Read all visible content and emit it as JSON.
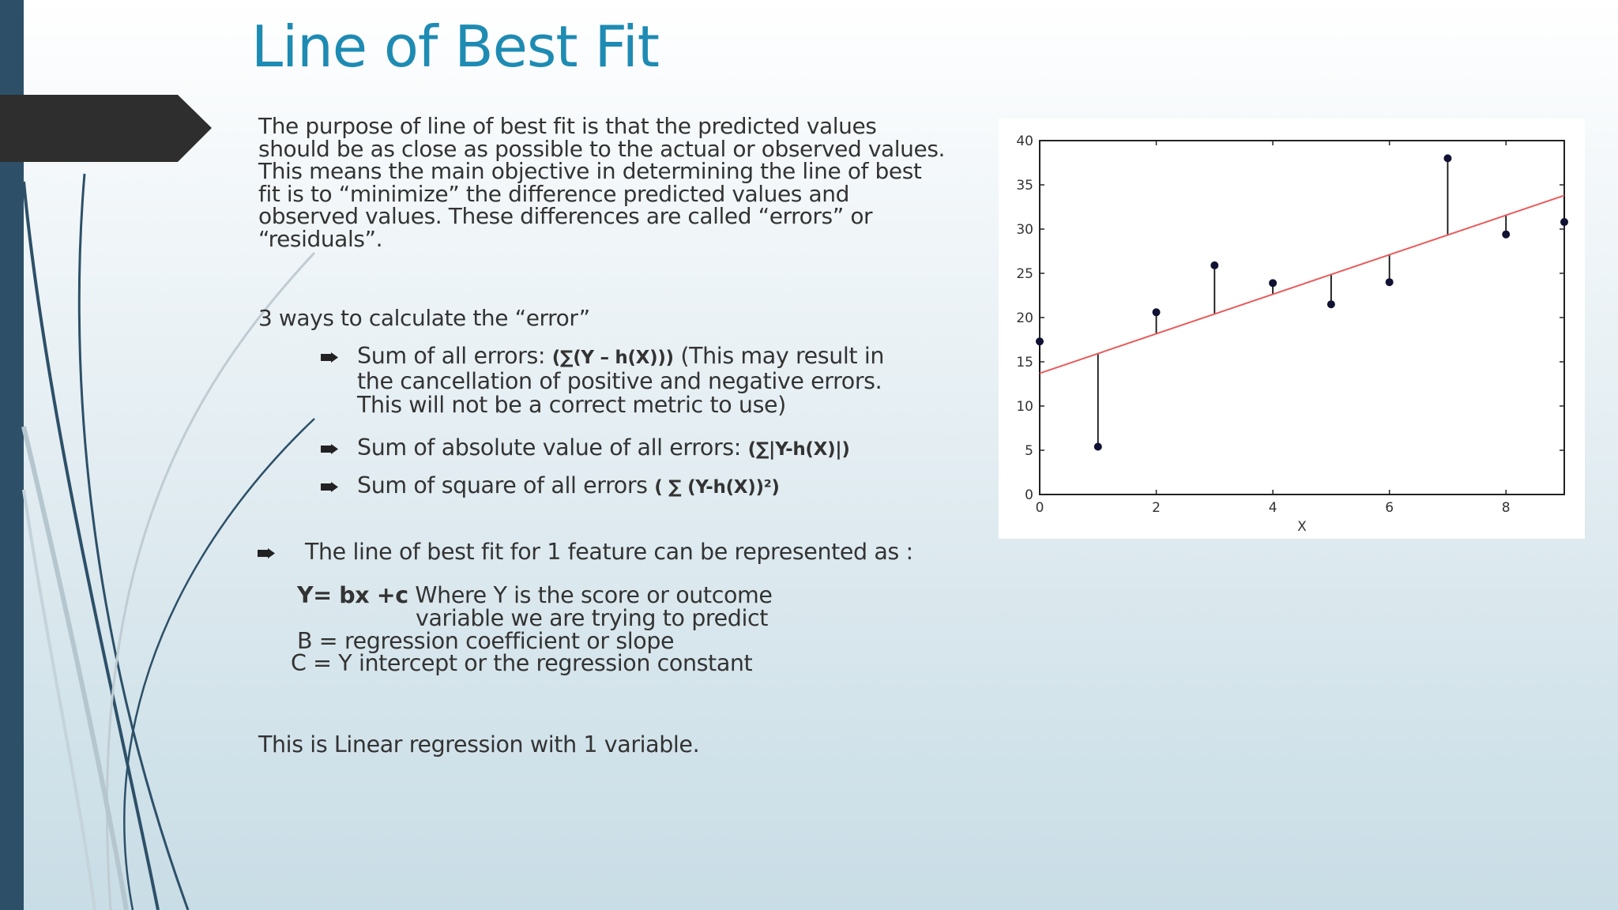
{
  "slide": {
    "title": "Line of Best Fit",
    "intro": "The purpose of line of best fit is that the predicted values should be as close as possible to the actual or observed values. This means the main objective in determining the line of best fit is to “minimize” the difference predicted values and observed values. These differences are called “errors” or “residuals”.",
    "ways_heading": "3 ways to calculate the “error”",
    "bullets": [
      {
        "text": "Sum of all errors: ",
        "formula": "(∑(Y – h(X)))",
        "after": "  (This may result in the cancellation of positive and negative errors. This will not be a correct metric to use)"
      },
      {
        "text": "Sum of absolute value of all errors: ",
        "formula": "(∑|Y-h(X)|)",
        "after": ""
      },
      {
        "text": "Sum of square of all errors ",
        "formula": "( ∑ (Y-h(X))²)",
        "after": ""
      }
    ],
    "best_fit": "The line of best fit for 1 feature can be represented as :",
    "equation": "Y= bx +c",
    "equation_desc_1": " Where Y is the score or outcome",
    "equation_desc_2": "variable we are trying to predict",
    "def_b": "B = regression coefficient or slope",
    "def_c": "C = Y intercept or the regression constant",
    "closing": "This is Linear regression with 1 variable."
  },
  "colors": {
    "title": "#1e8bb3",
    "sidebar": "#2d5068",
    "fit_line": "#e85c5c",
    "points": "#111133"
  },
  "chart_data": {
    "type": "scatter",
    "title": "",
    "xlabel": "X",
    "ylabel": "",
    "xlim": [
      0,
      9
    ],
    "ylim": [
      0,
      40
    ],
    "xticks": [
      "0",
      "2",
      "4",
      "6",
      "8"
    ],
    "yticks": [
      "0",
      "5",
      "10",
      "15",
      "20",
      "25",
      "30",
      "35",
      "40"
    ],
    "grid": false,
    "series": [
      {
        "x": [
          0,
          1,
          2,
          3,
          4,
          5,
          6,
          7,
          8,
          9
        ],
        "y": [
          17.3,
          5.4,
          20.6,
          25.9,
          23.9,
          21.5,
          24.0,
          38.0,
          29.4,
          30.8
        ]
      }
    ],
    "fit_line": {
      "x": [
        0,
        9
      ],
      "y": [
        13.7,
        33.8
      ]
    }
  }
}
